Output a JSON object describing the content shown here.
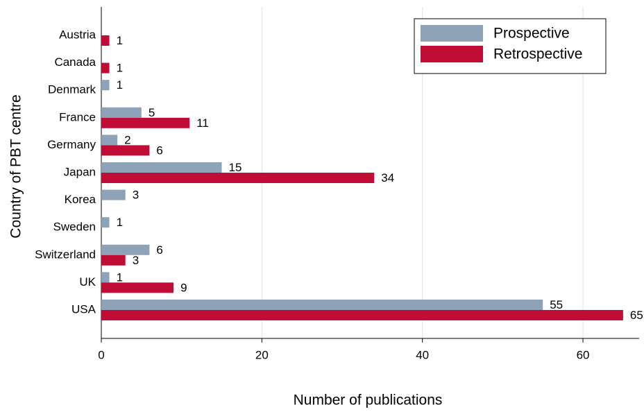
{
  "chart_data": {
    "type": "barh",
    "xlabel": "Number of publications",
    "ylabel": "Country of PBT centre",
    "categories": [
      "Austria",
      "Canada",
      "Denmark",
      "France",
      "Germany",
      "Japan",
      "Korea",
      "Sweden",
      "Switzerland",
      "UK",
      "USA"
    ],
    "series": [
      {
        "name": "Prospective",
        "color": "#8fa3b8",
        "values": [
          null,
          null,
          1,
          5,
          2,
          15,
          3,
          1,
          6,
          1,
          55
        ]
      },
      {
        "name": "Retrospective",
        "color": "#c00d35",
        "values": [
          1,
          1,
          null,
          11,
          6,
          34,
          null,
          null,
          3,
          9,
          65
        ]
      }
    ],
    "xlim": [
      0,
      67
    ],
    "xticks": [
      0,
      20,
      40,
      60
    ],
    "grid": true,
    "legend": "top-right"
  }
}
